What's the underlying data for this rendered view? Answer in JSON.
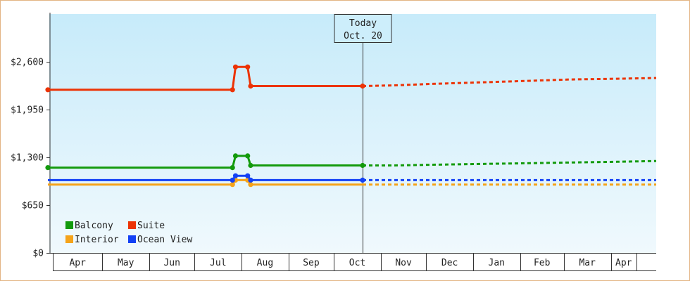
{
  "chart_data": {
    "type": "line",
    "ylim": [
      0,
      3250
    ],
    "y_ticks": [
      {
        "value": 0,
        "label": "$0"
      },
      {
        "value": 650,
        "label": "$650"
      },
      {
        "value": 1300,
        "label": "$1,300"
      },
      {
        "value": 1950,
        "label": "$1,950"
      },
      {
        "value": 2600,
        "label": "$2,600"
      }
    ],
    "xlim": [
      "2023-03-26",
      "2024-05-01"
    ],
    "x_ticks": [
      {
        "label": "Apr",
        "date": "2023-04-01"
      },
      {
        "label": "May",
        "date": "2023-05-01"
      },
      {
        "label": "Jun",
        "date": "2023-06-01"
      },
      {
        "label": "Jul",
        "date": "2023-07-01"
      },
      {
        "label": "Aug",
        "date": "2023-08-01"
      },
      {
        "label": "Sep",
        "date": "2023-09-01"
      },
      {
        "label": "Oct",
        "date": "2023-10-01"
      },
      {
        "label": "Nov",
        "date": "2023-11-01"
      },
      {
        "label": "Dec",
        "date": "2023-12-01"
      },
      {
        "label": "Jan",
        "date": "2024-01-01"
      },
      {
        "label": "Feb",
        "date": "2024-02-01"
      },
      {
        "label": "Mar",
        "date": "2024-03-01"
      },
      {
        "label": "Apr",
        "date": "2024-04-01"
      }
    ],
    "today": {
      "line1": "Today",
      "line2": "Oct. 20",
      "date": "2023-10-20"
    },
    "legend_placement": "bottom-left",
    "series": [
      {
        "name": "Balcony",
        "color": "#139a0c",
        "points": [
          [
            "2023-03-26",
            1160
          ],
          [
            "2023-07-26",
            1160
          ],
          [
            "2023-07-28",
            1320
          ],
          [
            "2023-08-05",
            1320
          ],
          [
            "2023-08-07",
            1190
          ],
          [
            "2023-10-20",
            1190
          ]
        ],
        "markers": [
          0,
          1,
          2,
          3,
          4,
          5
        ],
        "projection": [
          [
            "2023-10-20",
            1190
          ],
          [
            "2023-11-10",
            1190
          ],
          [
            "2023-12-05",
            1200
          ],
          [
            "2024-01-05",
            1210
          ],
          [
            "2024-02-05",
            1220
          ],
          [
            "2024-03-05",
            1230
          ],
          [
            "2024-04-05",
            1240
          ],
          [
            "2024-05-01",
            1250
          ]
        ]
      },
      {
        "name": "Suite",
        "color": "#ec3305",
        "points": [
          [
            "2023-03-26",
            2220
          ],
          [
            "2023-07-26",
            2220
          ],
          [
            "2023-07-28",
            2530
          ],
          [
            "2023-08-05",
            2530
          ],
          [
            "2023-08-07",
            2270
          ],
          [
            "2023-10-20",
            2270
          ]
        ],
        "markers": [
          0,
          1,
          2,
          3,
          4,
          5
        ],
        "projection": [
          [
            "2023-10-20",
            2270
          ],
          [
            "2023-11-10",
            2280
          ],
          [
            "2023-12-05",
            2300
          ],
          [
            "2024-01-05",
            2320
          ],
          [
            "2024-02-05",
            2340
          ],
          [
            "2024-03-05",
            2360
          ],
          [
            "2024-04-05",
            2370
          ],
          [
            "2024-05-01",
            2380
          ]
        ]
      },
      {
        "name": "Interior",
        "color": "#f5a31a",
        "points": [
          [
            "2023-03-26",
            930
          ],
          [
            "2023-07-26",
            930
          ],
          [
            "2023-07-28",
            990
          ],
          [
            "2023-08-05",
            990
          ],
          [
            "2023-08-07",
            930
          ],
          [
            "2023-10-20",
            930
          ]
        ],
        "markers": [
          1,
          2,
          3,
          4
        ],
        "projection": [
          [
            "2023-10-20",
            930
          ],
          [
            "2024-05-01",
            930
          ]
        ]
      },
      {
        "name": "Ocean View",
        "color": "#1341f5",
        "points": [
          [
            "2023-03-26",
            990
          ],
          [
            "2023-07-26",
            990
          ],
          [
            "2023-07-28",
            1050
          ],
          [
            "2023-08-05",
            1050
          ],
          [
            "2023-08-07",
            990
          ],
          [
            "2023-10-20",
            990
          ]
        ],
        "markers": [
          1,
          2,
          3,
          4,
          5
        ],
        "projection": [
          [
            "2023-10-20",
            990
          ],
          [
            "2024-05-01",
            990
          ]
        ]
      }
    ],
    "legend_order": [
      "Balcony",
      "Suite",
      "Interior",
      "Ocean View"
    ]
  }
}
